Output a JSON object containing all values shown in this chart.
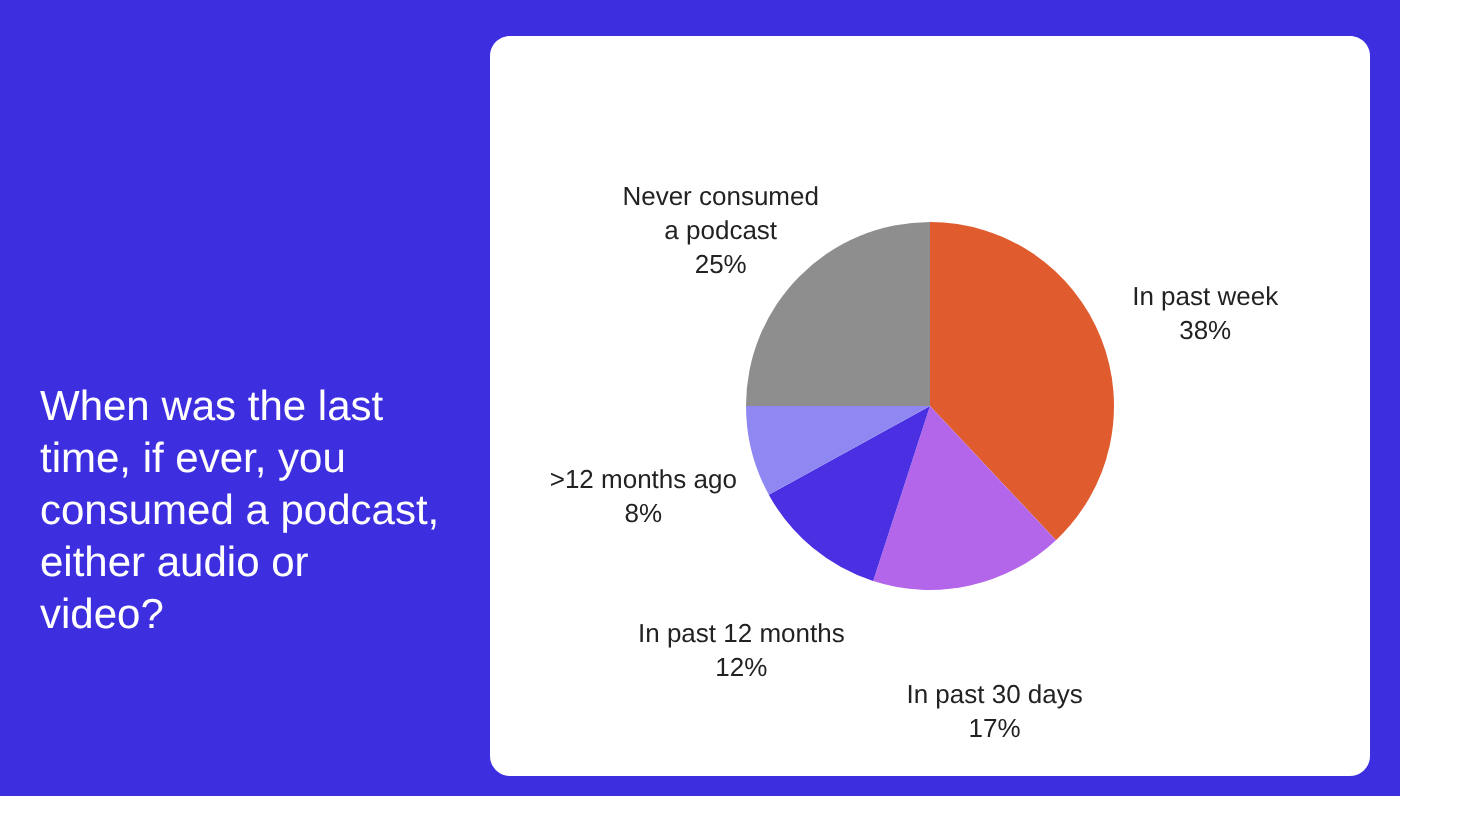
{
  "chart_data": {
    "type": "pie",
    "title": "When was the last time, if ever, you consumed a podcast, either audio or video?",
    "categories": [
      "In past week",
      "In past 30 days",
      "In past 12 months",
      ">12 months ago",
      "Never consumed a podcast"
    ],
    "values": [
      38,
      17,
      12,
      8,
      25
    ],
    "value_labels": [
      "38%",
      "17%",
      "12%",
      "8%",
      "25%"
    ],
    "colors": [
      "#e05c2e",
      "#b366ea",
      "#4a2fe3",
      "#8f88f2",
      "#8e8e8e"
    ],
    "legend": false
  }
}
